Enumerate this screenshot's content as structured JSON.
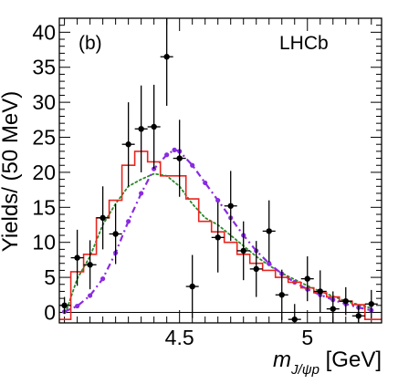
{
  "chart_data": {
    "type": "histogram",
    "panel_label": "(b)",
    "experiment_label": "LHCb",
    "xlabel": {
      "base": "m",
      "sub": "J/ψp",
      "unit": " [GeV]"
    },
    "ylabel": "Yields/ (50 MeV)",
    "xlim": [
      4.03,
      5.29
    ],
    "ylim": [
      -1.5,
      42
    ],
    "xticks": [
      4.5,
      5
    ],
    "yticks": [
      0,
      5,
      10,
      15,
      20,
      25,
      30,
      35,
      40
    ],
    "bin_width": 0.05,
    "data_points": [
      {
        "x": 4.05,
        "y": 1.0,
        "err": 1.2
      },
      {
        "x": 4.1,
        "y": 7.8,
        "err": 4.0
      },
      {
        "x": 4.15,
        "y": 6.8,
        "err": 3.5
      },
      {
        "x": 4.2,
        "y": 13.5,
        "err": 4.5
      },
      {
        "x": 4.25,
        "y": 11.2,
        "err": 4.3
      },
      {
        "x": 4.3,
        "y": 24.0,
        "err": 6.0
      },
      {
        "x": 4.35,
        "y": 26.2,
        "err": 6.2
      },
      {
        "x": 4.4,
        "y": 26.5,
        "err": 6.0
      },
      {
        "x": 4.45,
        "y": 36.5,
        "err": 7.0
      },
      {
        "x": 4.5,
        "y": 22.0,
        "err": 5.5
      },
      {
        "x": 4.55,
        "y": 3.7,
        "err": 4.5
      },
      {
        "x": 4.65,
        "y": 10.7,
        "err": 5.0
      },
      {
        "x": 4.7,
        "y": 15.2,
        "err": 5.0
      },
      {
        "x": 4.75,
        "y": 8.8,
        "err": 4.2
      },
      {
        "x": 4.8,
        "y": 6.2,
        "err": 4.0
      },
      {
        "x": 4.85,
        "y": 11.6,
        "err": 4.4
      },
      {
        "x": 4.9,
        "y": 2.5,
        "err": 3.6
      },
      {
        "x": 4.95,
        "y": -1.0,
        "err": 2.2
      },
      {
        "x": 5.0,
        "y": 4.8,
        "err": 3.2
      },
      {
        "x": 5.05,
        "y": 3.0,
        "err": 3.0
      },
      {
        "x": 5.1,
        "y": 0.5,
        "err": 2.5
      },
      {
        "x": 5.15,
        "y": 1.6,
        "err": 2.0
      },
      {
        "x": 5.2,
        "y": -0.5,
        "err": 1.5
      },
      {
        "x": 5.25,
        "y": 1.2,
        "err": 2.0
      }
    ],
    "series": [
      {
        "style": "red-histogram",
        "color": "#e8251f",
        "edges_x": [
          4.03,
          4.075,
          4.125,
          4.175,
          4.225,
          4.275,
          4.325,
          4.375,
          4.425,
          4.475,
          4.525,
          4.575,
          4.625,
          4.675,
          4.725,
          4.775,
          4.825,
          4.875,
          4.925,
          4.975,
          5.025,
          5.075,
          5.125,
          5.175,
          5.225,
          5.29
        ],
        "values": [
          -1,
          5.8,
          8.3,
          13.5,
          16.0,
          21.0,
          23.0,
          21.5,
          19.5,
          19.5,
          16.2,
          13.0,
          11.5,
          10.0,
          8.3,
          7.0,
          6.0,
          5.0,
          4.3,
          3.5,
          2.8,
          2.2,
          1.6,
          1.1,
          -1
        ]
      },
      {
        "style": "green-dotted",
        "color": "#2a8a2a",
        "x": [
          4.06,
          4.1,
          4.15,
          4.2,
          4.25,
          4.3,
          4.35,
          4.4,
          4.45,
          4.5,
          4.55,
          4.6,
          4.65,
          4.7,
          4.75,
          4.8,
          4.85,
          4.9,
          4.95,
          5.0,
          5.05,
          5.1,
          5.15,
          5.2,
          5.25
        ],
        "y": [
          0.5,
          4.8,
          8.0,
          12.5,
          15.5,
          18.0,
          19.0,
          19.8,
          19.5,
          18.0,
          15.5,
          13.5,
          12.5,
          11.0,
          9.5,
          8.0,
          6.7,
          5.6,
          4.7,
          3.8,
          3.0,
          2.3,
          1.6,
          1.1,
          0.6
        ]
      },
      {
        "style": "violet-dash-dot",
        "color": "#8a2be2",
        "x": [
          4.05,
          4.1,
          4.15,
          4.2,
          4.25,
          4.3,
          4.35,
          4.4,
          4.45,
          4.48,
          4.5,
          4.55,
          4.6,
          4.65,
          4.7,
          4.75,
          4.8,
          4.85,
          4.9,
          4.95,
          5.0,
          5.05,
          5.1,
          5.15,
          5.2,
          5.25
        ],
        "y": [
          0.1,
          0.9,
          2.4,
          4.8,
          8.5,
          13.0,
          17.0,
          20.5,
          22.5,
          23.2,
          23.0,
          21.0,
          18.5,
          16.0,
          13.5,
          11.0,
          8.8,
          7.0,
          5.5,
          4.3,
          3.3,
          2.5,
          1.8,
          1.2,
          0.7,
          0.3
        ]
      }
    ]
  }
}
